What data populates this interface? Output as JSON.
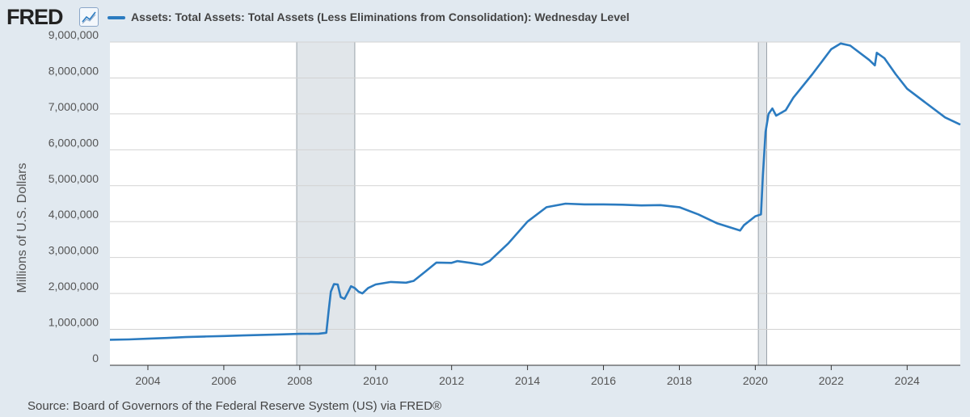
{
  "brand": {
    "name": "FRED",
    "icon": "line-chart-icon"
  },
  "source": "Source: Board of Governors of the Federal Reserve System (US) via FRED®",
  "chart_data": {
    "type": "line",
    "title": "",
    "xlabel": "",
    "ylabel": "Millions of U.S. Dollars",
    "xlim": [
      2003.0,
      2025.4
    ],
    "ylim": [
      0,
      9000000
    ],
    "grid": true,
    "legend": "top-left",
    "x_ticks": [
      "2004",
      "2006",
      "2008",
      "2010",
      "2012",
      "2014",
      "2016",
      "2018",
      "2020",
      "2022",
      "2024"
    ],
    "y_ticks": [
      "0",
      "1,000,000",
      "2,000,000",
      "3,000,000",
      "4,000,000",
      "5,000,000",
      "6,000,000",
      "7,000,000",
      "8,000,000",
      "9,000,000"
    ],
    "recessions": [
      {
        "start": 2007.92,
        "end": 2009.45
      },
      {
        "start": 2020.08,
        "end": 2020.3
      }
    ],
    "series": [
      {
        "name": "Assets: Total Assets: Total Assets (Less Eliminations from Consolidation): Wednesday Level",
        "color": "#2b7bc0",
        "points": [
          [
            2003.0,
            710000
          ],
          [
            2003.5,
            720000
          ],
          [
            2004.0,
            740000
          ],
          [
            2004.5,
            760000
          ],
          [
            2005.0,
            785000
          ],
          [
            2005.5,
            800000
          ],
          [
            2006.0,
            815000
          ],
          [
            2006.5,
            830000
          ],
          [
            2007.0,
            845000
          ],
          [
            2007.5,
            860000
          ],
          [
            2008.0,
            875000
          ],
          [
            2008.5,
            880000
          ],
          [
            2008.7,
            905000
          ],
          [
            2008.76,
            1500000
          ],
          [
            2008.82,
            2050000
          ],
          [
            2008.9,
            2260000
          ],
          [
            2009.0,
            2250000
          ],
          [
            2009.08,
            1900000
          ],
          [
            2009.18,
            1850000
          ],
          [
            2009.28,
            2050000
          ],
          [
            2009.35,
            2200000
          ],
          [
            2009.45,
            2150000
          ],
          [
            2009.55,
            2050000
          ],
          [
            2009.65,
            2000000
          ],
          [
            2009.8,
            2150000
          ],
          [
            2010.0,
            2250000
          ],
          [
            2010.4,
            2320000
          ],
          [
            2010.8,
            2300000
          ],
          [
            2011.0,
            2350000
          ],
          [
            2011.3,
            2600000
          ],
          [
            2011.6,
            2860000
          ],
          [
            2012.0,
            2850000
          ],
          [
            2012.15,
            2900000
          ],
          [
            2012.5,
            2850000
          ],
          [
            2012.8,
            2800000
          ],
          [
            2013.0,
            2900000
          ],
          [
            2013.5,
            3400000
          ],
          [
            2014.0,
            4000000
          ],
          [
            2014.5,
            4400000
          ],
          [
            2015.0,
            4500000
          ],
          [
            2015.5,
            4480000
          ],
          [
            2016.0,
            4480000
          ],
          [
            2016.5,
            4470000
          ],
          [
            2017.0,
            4450000
          ],
          [
            2017.5,
            4460000
          ],
          [
            2018.0,
            4400000
          ],
          [
            2018.5,
            4200000
          ],
          [
            2019.0,
            3950000
          ],
          [
            2019.6,
            3750000
          ],
          [
            2019.7,
            3900000
          ],
          [
            2020.0,
            4150000
          ],
          [
            2020.15,
            4200000
          ],
          [
            2020.2,
            5300000
          ],
          [
            2020.27,
            6500000
          ],
          [
            2020.35,
            7000000
          ],
          [
            2020.45,
            7150000
          ],
          [
            2020.55,
            6950000
          ],
          [
            2020.8,
            7100000
          ],
          [
            2021.0,
            7450000
          ],
          [
            2021.5,
            8100000
          ],
          [
            2022.0,
            8800000
          ],
          [
            2022.25,
            8960000
          ],
          [
            2022.5,
            8900000
          ],
          [
            2023.0,
            8500000
          ],
          [
            2023.15,
            8350000
          ],
          [
            2023.2,
            8700000
          ],
          [
            2023.4,
            8550000
          ],
          [
            2023.7,
            8100000
          ],
          [
            2024.0,
            7700000
          ],
          [
            2024.5,
            7300000
          ],
          [
            2025.0,
            6900000
          ],
          [
            2025.4,
            6700000
          ]
        ]
      }
    ]
  }
}
